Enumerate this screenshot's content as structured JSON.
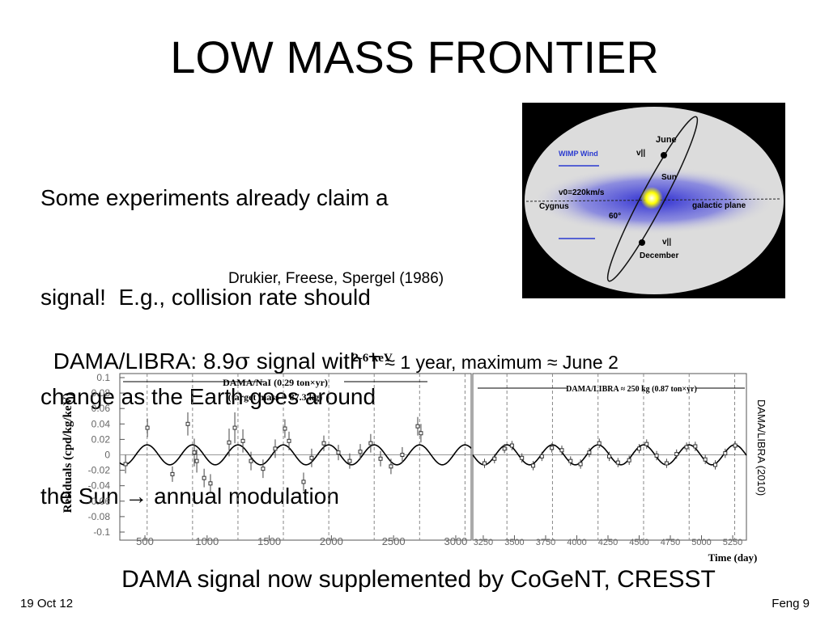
{
  "title": "LOW MASS FRONTIER",
  "body_lines": [
    "Some experiments already claim a",
    "signal!  E.g., collision rate should",
    "change as the Earth goes around",
    "the Sun → annual modulation"
  ],
  "citation": "Drukier, Freese, Spergel (1986)",
  "diagram": {
    "labels": [
      "June",
      "WIMP Wind",
      "v||",
      "Sun",
      "v0=220km/s",
      "Cygnus",
      "60°",
      "galactic plane",
      "v||",
      "December"
    ]
  },
  "headline": {
    "part1": "DAMA/LIBRA: 8.9",
    "sigma": "σ",
    "part2": " signal with ",
    "part3": "T ≈ 1 year, maximum ≈ June 2"
  },
  "plot": {
    "title": "2-6 keV",
    "ylabel": "Residuals (cpd/kg/keV)",
    "xlabel": "Time (day)",
    "ylim": [
      -0.1,
      0.1
    ],
    "yticks": [
      0.1,
      0.08,
      0.06,
      0.04,
      0.02,
      0,
      -0.02,
      -0.04,
      -0.06,
      -0.08,
      -0.1
    ],
    "fit": {
      "amplitude": 0.0129,
      "period": 365.25,
      "phase": 152.5
    },
    "left": {
      "annotation1": "DAMA/NaI (0.29 ton×yr)",
      "annotation2": "(target mass = 87.3 kg)",
      "xlim": [
        298,
        3124
      ],
      "xticks": [
        500,
        1000,
        1500,
        2000,
        2500,
        3000
      ],
      "x": [
        344,
        520,
        721,
        845,
        897,
        917,
        976,
        1027,
        1177,
        1223,
        1288,
        1353,
        1450,
        1548,
        1626,
        1659,
        1776,
        1841,
        1939,
        2056,
        2147,
        2232,
        2316,
        2395,
        2479,
        2570,
        2694,
        2720
      ],
      "values": [
        -0.012,
        0.035,
        -0.025,
        0.04,
        0.003,
        -0.008,
        -0.03,
        -0.037,
        0.016,
        0.035,
        0.018,
        -0.008,
        -0.018,
        0.008,
        0.034,
        0.018,
        -0.035,
        -0.004,
        0.015,
        0.003,
        -0.008,
        0.004,
        0.015,
        -0.005,
        -0.015,
        0,
        0.037,
        0.028
      ],
      "errors": [
        0.012,
        0.012,
        0.01,
        0.015,
        0.018,
        0.015,
        0.012,
        0.012,
        0.018,
        0.02,
        0.015,
        0.012,
        0.012,
        0.012,
        0.012,
        0.012,
        0.012,
        0.012,
        0.01,
        0.01,
        0.01,
        0.01,
        0.012,
        0.01,
        0.01,
        0.01,
        0.012,
        0.012
      ]
    },
    "right": {
      "annotation": "DAMA/LIBRA ≈ 250 kg (0.87 ton×yr)",
      "xlim": [
        3166,
        5360
      ],
      "xticks": [
        3250,
        3500,
        3750,
        4000,
        4250,
        4500,
        4750,
        5000,
        5250
      ],
      "x": [
        3260,
        3340,
        3420,
        3480,
        3560,
        3650,
        3720,
        3800,
        3880,
        3950,
        4030,
        4100,
        4180,
        4260,
        4330,
        4420,
        4500,
        4560,
        4640,
        4720,
        4800,
        4880,
        4950,
        5030,
        5110,
        5190,
        5270
      ],
      "values": [
        -0.011,
        -0.005,
        0.008,
        0.012,
        -0.004,
        -0.014,
        -0.002,
        0.009,
        0.006,
        -0.008,
        -0.012,
        0.003,
        0.015,
        -0.002,
        -0.01,
        -0.007,
        0.008,
        0.014,
        -0.001,
        -0.011,
        0.001,
        0.01,
        0.011,
        -0.006,
        -0.013,
        0.002,
        0.012
      ],
      "errors": [
        0.006,
        0.006,
        0.006,
        0.006,
        0.006,
        0.006,
        0.006,
        0.006,
        0.006,
        0.006,
        0.006,
        0.006,
        0.006,
        0.006,
        0.006,
        0.006,
        0.006,
        0.006,
        0.006,
        0.006,
        0.006,
        0.006,
        0.006,
        0.006,
        0.006,
        0.006,
        0.006
      ]
    },
    "side_label": "DAMA/LIBRA (2010)"
  },
  "bottom_line": "DAMA signal now supplemented by CoGeNT, CRESST",
  "footer": {
    "date": "19 Oct 12",
    "page": "Feng 9"
  }
}
